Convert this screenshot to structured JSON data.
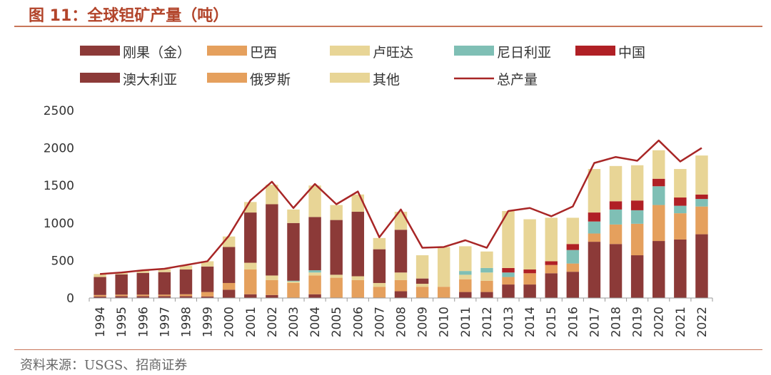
{
  "title": "图 11：全球钽矿产量（吨）",
  "source": "资料来源：USGS、招商证券",
  "legend_position": "top",
  "colors": {
    "刚果（金）": "#8c3a38",
    "巴西": "#e5a05d",
    "卢旺达": "#e8d596",
    "尼日利亚": "#7fbfb5",
    "中国": "#b02025",
    "澳大利亚": "#8c3a38",
    "俄罗斯": "#e5a05d",
    "其他": "#e8d596",
    "总产量": "#a82626"
  },
  "chart_data": {
    "type": "bar",
    "stacked": true,
    "title": "图 11：全球钽矿产量（吨）",
    "xlabel": "",
    "ylabel": "",
    "ylim": [
      0,
      2500
    ],
    "yticks": [
      "0",
      "500",
      "1000",
      "1500",
      "2000",
      "2500"
    ],
    "grid": false,
    "categories": [
      "1994",
      "1995",
      "1996",
      "1997",
      "1998",
      "1999",
      "2000",
      "2001",
      "2002",
      "2003",
      "2004",
      "2005",
      "2006",
      "2007",
      "2008",
      "2009",
      "2010",
      "2011",
      "2012",
      "2013",
      "2014",
      "2015",
      "2016",
      "2017",
      "2018",
      "2019",
      "2020",
      "2021",
      "2022"
    ],
    "series": [
      {
        "name": "澳大利亚",
        "values": [
          20,
          25,
          25,
          25,
          25,
          20,
          110,
          50,
          40,
          0,
          50,
          0,
          0,
          0,
          90,
          0,
          0,
          80,
          80,
          180,
          180,
          330,
          350,
          750,
          720,
          570,
          760,
          780,
          850
        ]
      },
      {
        "name": "俄罗斯",
        "values": [
          20,
          20,
          20,
          20,
          25,
          60,
          90,
          330,
          200,
          200,
          250,
          270,
          240,
          150,
          150,
          150,
          150,
          170,
          150,
          0,
          0,
          0,
          0,
          0,
          0,
          0,
          0,
          0,
          0
        ]
      },
      {
        "name": "巴西",
        "values": [
          0,
          0,
          0,
          0,
          0,
          0,
          0,
          0,
          0,
          0,
          0,
          0,
          0,
          0,
          0,
          0,
          0,
          0,
          0,
          100,
          150,
          110,
          110,
          110,
          260,
          420,
          480,
          350,
          370
        ]
      },
      {
        "name": "其他",
        "values": [
          0,
          0,
          0,
          0,
          0,
          0,
          0,
          90,
          60,
          20,
          40,
          40,
          50,
          50,
          100,
          40,
          0,
          60,
          110,
          0,
          0,
          0,
          0,
          0,
          0,
          0,
          0,
          0,
          0
        ]
      },
      {
        "name": "尼日利亚",
        "values": [
          0,
          0,
          0,
          0,
          0,
          0,
          0,
          0,
          0,
          10,
          30,
          0,
          0,
          0,
          0,
          0,
          0,
          50,
          60,
          60,
          0,
          0,
          180,
          160,
          200,
          180,
          250,
          100,
          100
        ]
      },
      {
        "name": "刚果（金）",
        "values": [
          240,
          270,
          290,
          300,
          330,
          340,
          480,
          670,
          950,
          770,
          710,
          730,
          860,
          450,
          570,
          70,
          0,
          0,
          0,
          0,
          0,
          0,
          0,
          0,
          0,
          0,
          0,
          0,
          0
        ]
      },
      {
        "name": "中国",
        "values": [
          0,
          0,
          0,
          0,
          0,
          0,
          0,
          0,
          0,
          0,
          0,
          0,
          0,
          0,
          0,
          0,
          0,
          0,
          0,
          60,
          50,
          50,
          80,
          120,
          110,
          130,
          100,
          110,
          60
        ]
      },
      {
        "name": "卢旺达",
        "values": [
          40,
          20,
          30,
          40,
          50,
          70,
          140,
          140,
          260,
          180,
          420,
          200,
          230,
          150,
          240,
          310,
          530,
          330,
          220,
          760,
          670,
          580,
          350,
          580,
          470,
          470,
          380,
          380,
          520
        ]
      }
    ],
    "line": {
      "name": "总产量",
      "values": [
        320,
        340,
        370,
        390,
        440,
        490,
        830,
        1300,
        1550,
        1200,
        1520,
        1250,
        1420,
        810,
        1180,
        670,
        680,
        770,
        670,
        1160,
        1200,
        1090,
        1220,
        1800,
        1880,
        1830,
        2100,
        1820,
        2000
      ]
    }
  }
}
